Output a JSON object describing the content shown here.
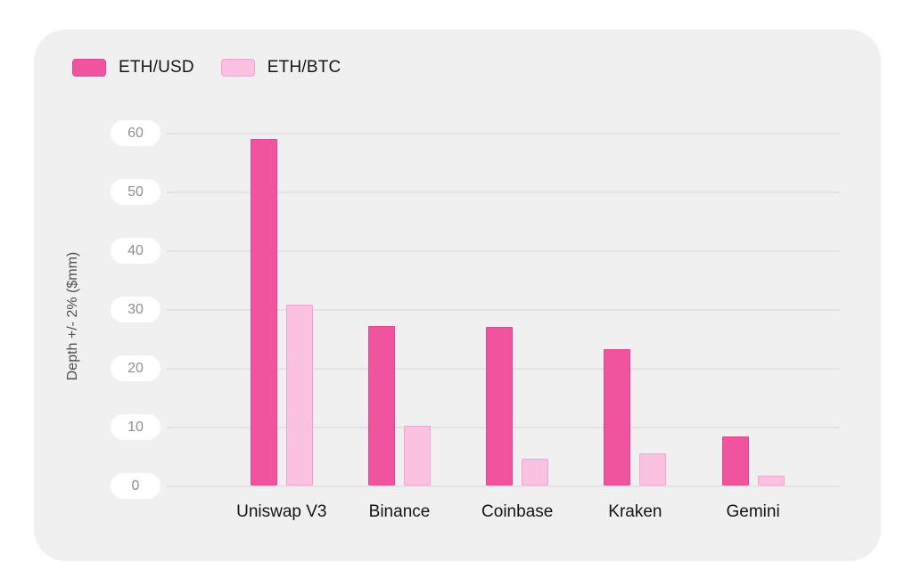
{
  "legend": [
    {
      "label": "ETH/USD",
      "color": "#F0549E",
      "border": "#E34694"
    },
    {
      "label": "ETH/BTC",
      "color": "#FAC2E0",
      "border": "#F3A4CF"
    }
  ],
  "chart_data": {
    "type": "bar",
    "categories": [
      "Uniswap V3",
      "Binance",
      "Coinbase",
      "Kraken",
      "Gemini"
    ],
    "series": [
      {
        "name": "ETH/USD",
        "color": "#F0549E",
        "border": "#E34694",
        "values": [
          59.1,
          27.3,
          27.1,
          23.3,
          8.4
        ]
      },
      {
        "name": "ETH/BTC",
        "color": "#FAC2E0",
        "border": "#F3A4CF",
        "values": [
          30.9,
          10.3,
          4.6,
          5.5,
          1.7
        ]
      }
    ],
    "title": "",
    "xlabel": "",
    "ylabel": "Depth +/- 2% ($mm)",
    "yticks": [
      0,
      10,
      20,
      30,
      40,
      50,
      60
    ],
    "ylim": [
      0,
      60
    ],
    "grid": true,
    "legend_position": "top-left"
  },
  "colors": {
    "card_background": "#F0F0F1",
    "page_background": "#FFFFFF",
    "gridline": "#E3E3E6",
    "tick_pill_background": "#FFFFFF",
    "tick_text": "#8F8F91",
    "axis_title_text": "#4E4E4E",
    "category_label_text": "#141414"
  }
}
